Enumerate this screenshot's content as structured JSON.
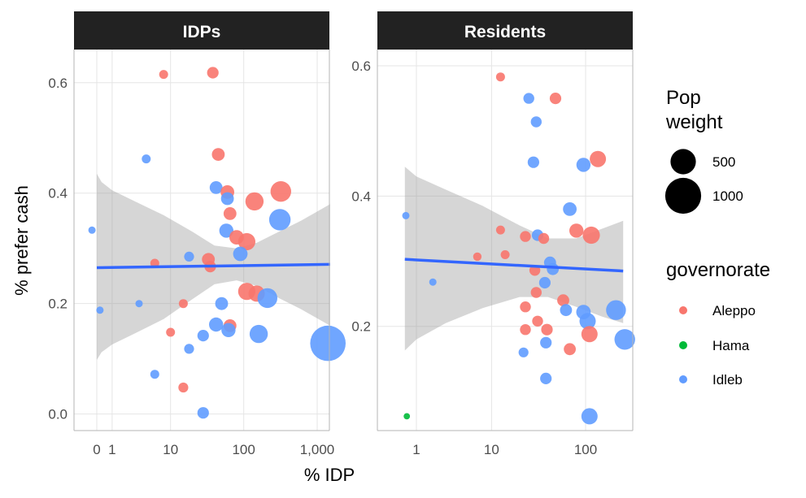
{
  "chart_data": {
    "type": "scatter",
    "xlabel": "% IDP",
    "ylabel": "% prefer cash",
    "x_scale": "log",
    "panels": [
      {
        "title": "IDPs",
        "x_ticks": [
          {
            "value": 0,
            "label": "0"
          },
          {
            "value": 1,
            "label": "1"
          },
          {
            "value": 10,
            "label": "10"
          },
          {
            "value": 100,
            "label": "100"
          },
          {
            "value": 1000,
            "label": "1,000"
          }
        ],
        "y_ticks": [
          {
            "value": 0.0,
            "label": "0.0"
          },
          {
            "value": 0.2,
            "label": "0.2"
          },
          {
            "value": 0.4,
            "label": "0.4"
          },
          {
            "value": 0.6,
            "label": "0.6"
          }
        ],
        "ylim": [
          -0.03,
          0.66
        ],
        "trend": {
          "x": [
            0,
            1500
          ],
          "y": [
            0.265,
            0.271
          ]
        },
        "band": {
          "x": [
            0,
            0.3,
            1,
            3,
            8,
            20,
            40,
            80,
            150,
            300,
            600,
            1500
          ],
          "upper": [
            0.435,
            0.42,
            0.405,
            0.385,
            0.36,
            0.33,
            0.305,
            0.3,
            0.31,
            0.33,
            0.35,
            0.38
          ],
          "lower": [
            0.098,
            0.112,
            0.126,
            0.146,
            0.172,
            0.208,
            0.235,
            0.242,
            0.232,
            0.21,
            0.19,
            0.16
          ]
        },
        "points": [
          {
            "x": 8,
            "y": 0.615,
            "group": "Aleppo",
            "size": 120
          },
          {
            "x": 38,
            "y": 0.618,
            "group": "Aleppo",
            "size": 200
          },
          {
            "x": 4.5,
            "y": 0.462,
            "group": "Idleb",
            "size": 120
          },
          {
            "x": 45,
            "y": 0.47,
            "group": "Aleppo",
            "size": 250
          },
          {
            "x": 42,
            "y": 0.41,
            "group": "Idleb",
            "size": 250
          },
          {
            "x": 60,
            "y": 0.402,
            "group": "Aleppo",
            "size": 280
          },
          {
            "x": 60,
            "y": 0.39,
            "group": "Idleb",
            "size": 250
          },
          {
            "x": 140,
            "y": 0.385,
            "group": "Aleppo",
            "size": 500
          },
          {
            "x": 320,
            "y": 0.403,
            "group": "Aleppo",
            "size": 650
          },
          {
            "x": 65,
            "y": 0.363,
            "group": "Aleppo",
            "size": 250
          },
          {
            "x": 310,
            "y": 0.352,
            "group": "Idleb",
            "size": 700
          },
          {
            "x": -0.3,
            "y": 0.333,
            "group": "Idleb",
            "size": 80
          },
          {
            "x": 58,
            "y": 0.332,
            "group": "Idleb",
            "size": 300
          },
          {
            "x": 80,
            "y": 0.32,
            "group": "Aleppo",
            "size": 320
          },
          {
            "x": 110,
            "y": 0.312,
            "group": "Aleppo",
            "size": 450
          },
          {
            "x": 90,
            "y": 0.29,
            "group": "Idleb",
            "size": 320
          },
          {
            "x": 18,
            "y": 0.285,
            "group": "Idleb",
            "size": 150
          },
          {
            "x": 33,
            "y": 0.28,
            "group": "Aleppo",
            "size": 250
          },
          {
            "x": 6,
            "y": 0.273,
            "group": "Aleppo",
            "size": 120
          },
          {
            "x": 35,
            "y": 0.267,
            "group": "Aleppo",
            "size": 200
          },
          {
            "x": 110,
            "y": 0.222,
            "group": "Aleppo",
            "size": 450
          },
          {
            "x": 150,
            "y": 0.218,
            "group": "Aleppo",
            "size": 400
          },
          {
            "x": 210,
            "y": 0.21,
            "group": "Idleb",
            "size": 600
          },
          {
            "x": 15,
            "y": 0.2,
            "group": "Aleppo",
            "size": 120
          },
          {
            "x": 3.5,
            "y": 0.2,
            "group": "Idleb",
            "size": 80
          },
          {
            "x": 50,
            "y": 0.2,
            "group": "Idleb",
            "size": 250
          },
          {
            "x": 0.2,
            "y": 0.188,
            "group": "Idleb",
            "size": 80
          },
          {
            "x": 42,
            "y": 0.162,
            "group": "Idleb",
            "size": 300
          },
          {
            "x": 65,
            "y": 0.16,
            "group": "Aleppo",
            "size": 250
          },
          {
            "x": 62,
            "y": 0.152,
            "group": "Idleb",
            "size": 300
          },
          {
            "x": 10,
            "y": 0.148,
            "group": "Aleppo",
            "size": 120
          },
          {
            "x": 28,
            "y": 0.142,
            "group": "Idleb",
            "size": 200
          },
          {
            "x": 160,
            "y": 0.145,
            "group": "Idleb",
            "size": 500
          },
          {
            "x": 1400,
            "y": 0.128,
            "group": "Idleb",
            "size": 1900
          },
          {
            "x": 18,
            "y": 0.118,
            "group": "Idleb",
            "size": 150
          },
          {
            "x": 6,
            "y": 0.072,
            "group": "Idleb",
            "size": 120
          },
          {
            "x": 15,
            "y": 0.048,
            "group": "Aleppo",
            "size": 150
          },
          {
            "x": 28,
            "y": 0.002,
            "group": "Idleb",
            "size": 200
          }
        ]
      },
      {
        "title": "Residents",
        "x_ticks": [
          {
            "value": 1,
            "label": "1"
          },
          {
            "value": 10,
            "label": "10"
          },
          {
            "value": 100,
            "label": "100"
          }
        ],
        "y_ticks": [
          {
            "value": 0.2,
            "label": "0.2"
          },
          {
            "value": 0.4,
            "label": "0.4"
          },
          {
            "value": 0.6,
            "label": "0.6"
          }
        ],
        "ylim": [
          0.04,
          0.625
        ],
        "trend": {
          "x": [
            0.4,
            250
          ],
          "y": [
            0.303,
            0.285
          ]
        },
        "band": {
          "x": [
            0.4,
            1,
            3,
            8,
            20,
            40,
            80,
            150,
            250
          ],
          "upper": [
            0.445,
            0.43,
            0.41,
            0.385,
            0.355,
            0.335,
            0.335,
            0.35,
            0.362
          ],
          "lower": [
            0.163,
            0.18,
            0.205,
            0.228,
            0.245,
            0.245,
            0.23,
            0.215,
            0.205
          ]
        },
        "points": [
          {
            "x": 12.5,
            "y": 0.583,
            "group": "Aleppo",
            "size": 120
          },
          {
            "x": 25,
            "y": 0.55,
            "group": "Idleb",
            "size": 180
          },
          {
            "x": 48,
            "y": 0.55,
            "group": "Aleppo",
            "size": 200
          },
          {
            "x": 30,
            "y": 0.514,
            "group": "Idleb",
            "size": 180
          },
          {
            "x": 135,
            "y": 0.457,
            "group": "Aleppo",
            "size": 400
          },
          {
            "x": 28,
            "y": 0.452,
            "group": "Idleb",
            "size": 200
          },
          {
            "x": 95,
            "y": 0.448,
            "group": "Idleb",
            "size": 300
          },
          {
            "x": 68,
            "y": 0.38,
            "group": "Idleb",
            "size": 280
          },
          {
            "x": 0.45,
            "y": 0.37,
            "group": "Idleb",
            "size": 80
          },
          {
            "x": 12.5,
            "y": 0.348,
            "group": "Aleppo",
            "size": 120
          },
          {
            "x": 80,
            "y": 0.347,
            "group": "Aleppo",
            "size": 300
          },
          {
            "x": 115,
            "y": 0.34,
            "group": "Aleppo",
            "size": 450
          },
          {
            "x": 23,
            "y": 0.338,
            "group": "Aleppo",
            "size": 180
          },
          {
            "x": 31,
            "y": 0.34,
            "group": "Idleb",
            "size": 200
          },
          {
            "x": 36,
            "y": 0.335,
            "group": "Aleppo",
            "size": 180
          },
          {
            "x": 14,
            "y": 0.31,
            "group": "Aleppo",
            "size": 120
          },
          {
            "x": 7,
            "y": 0.307,
            "group": "Aleppo",
            "size": 110
          },
          {
            "x": 42,
            "y": 0.298,
            "group": "Idleb",
            "size": 220
          },
          {
            "x": 29,
            "y": 0.286,
            "group": "Aleppo",
            "size": 180
          },
          {
            "x": 45,
            "y": 0.288,
            "group": "Idleb",
            "size": 220
          },
          {
            "x": 2,
            "y": 0.268,
            "group": "Idleb",
            "size": 80
          },
          {
            "x": 37,
            "y": 0.267,
            "group": "Idleb",
            "size": 200
          },
          {
            "x": 30,
            "y": 0.252,
            "group": "Aleppo",
            "size": 180
          },
          {
            "x": 58,
            "y": 0.24,
            "group": "Aleppo",
            "size": 220
          },
          {
            "x": 23,
            "y": 0.23,
            "group": "Aleppo",
            "size": 180
          },
          {
            "x": 62,
            "y": 0.225,
            "group": "Idleb",
            "size": 220
          },
          {
            "x": 95,
            "y": 0.222,
            "group": "Idleb",
            "size": 320
          },
          {
            "x": 210,
            "y": 0.225,
            "group": "Idleb",
            "size": 600
          },
          {
            "x": 31,
            "y": 0.208,
            "group": "Aleppo",
            "size": 180
          },
          {
            "x": 105,
            "y": 0.208,
            "group": "Idleb",
            "size": 400
          },
          {
            "x": 23,
            "y": 0.195,
            "group": "Aleppo",
            "size": 180
          },
          {
            "x": 39,
            "y": 0.195,
            "group": "Aleppo",
            "size": 200
          },
          {
            "x": 110,
            "y": 0.188,
            "group": "Aleppo",
            "size": 400
          },
          {
            "x": 260,
            "y": 0.18,
            "group": "Idleb",
            "size": 650
          },
          {
            "x": 38,
            "y": 0.175,
            "group": "Idleb",
            "size": 200
          },
          {
            "x": 68,
            "y": 0.165,
            "group": "Aleppo",
            "size": 220
          },
          {
            "x": 22,
            "y": 0.16,
            "group": "Idleb",
            "size": 150
          },
          {
            "x": 38,
            "y": 0.12,
            "group": "Idleb",
            "size": 200
          },
          {
            "x": 110,
            "y": 0.062,
            "group": "Idleb",
            "size": 400
          },
          {
            "x": 0.5,
            "y": 0.062,
            "group": "Hama",
            "size": 60
          }
        ]
      }
    ],
    "legend": {
      "placement": "right",
      "size_title": "Pop\nweight",
      "size_entries": [
        {
          "label": "500",
          "value": 500
        },
        {
          "label": "1000",
          "value": 1000
        }
      ],
      "color_title": "governorate",
      "color_entries": [
        {
          "label": "Aleppo",
          "color": "#f8766d"
        },
        {
          "label": "Hama",
          "color": "#00ba38"
        },
        {
          "label": "Idleb",
          "color": "#619cff"
        }
      ]
    },
    "colors": {
      "Aleppo": "#f8766d",
      "Hama": "#00ba38",
      "Idleb": "#619cff",
      "trend": "#3366ff",
      "band": "#999999",
      "strip": "#222222",
      "grid": "#e5e5e5",
      "panel_border": "#b5b5b5"
    }
  }
}
